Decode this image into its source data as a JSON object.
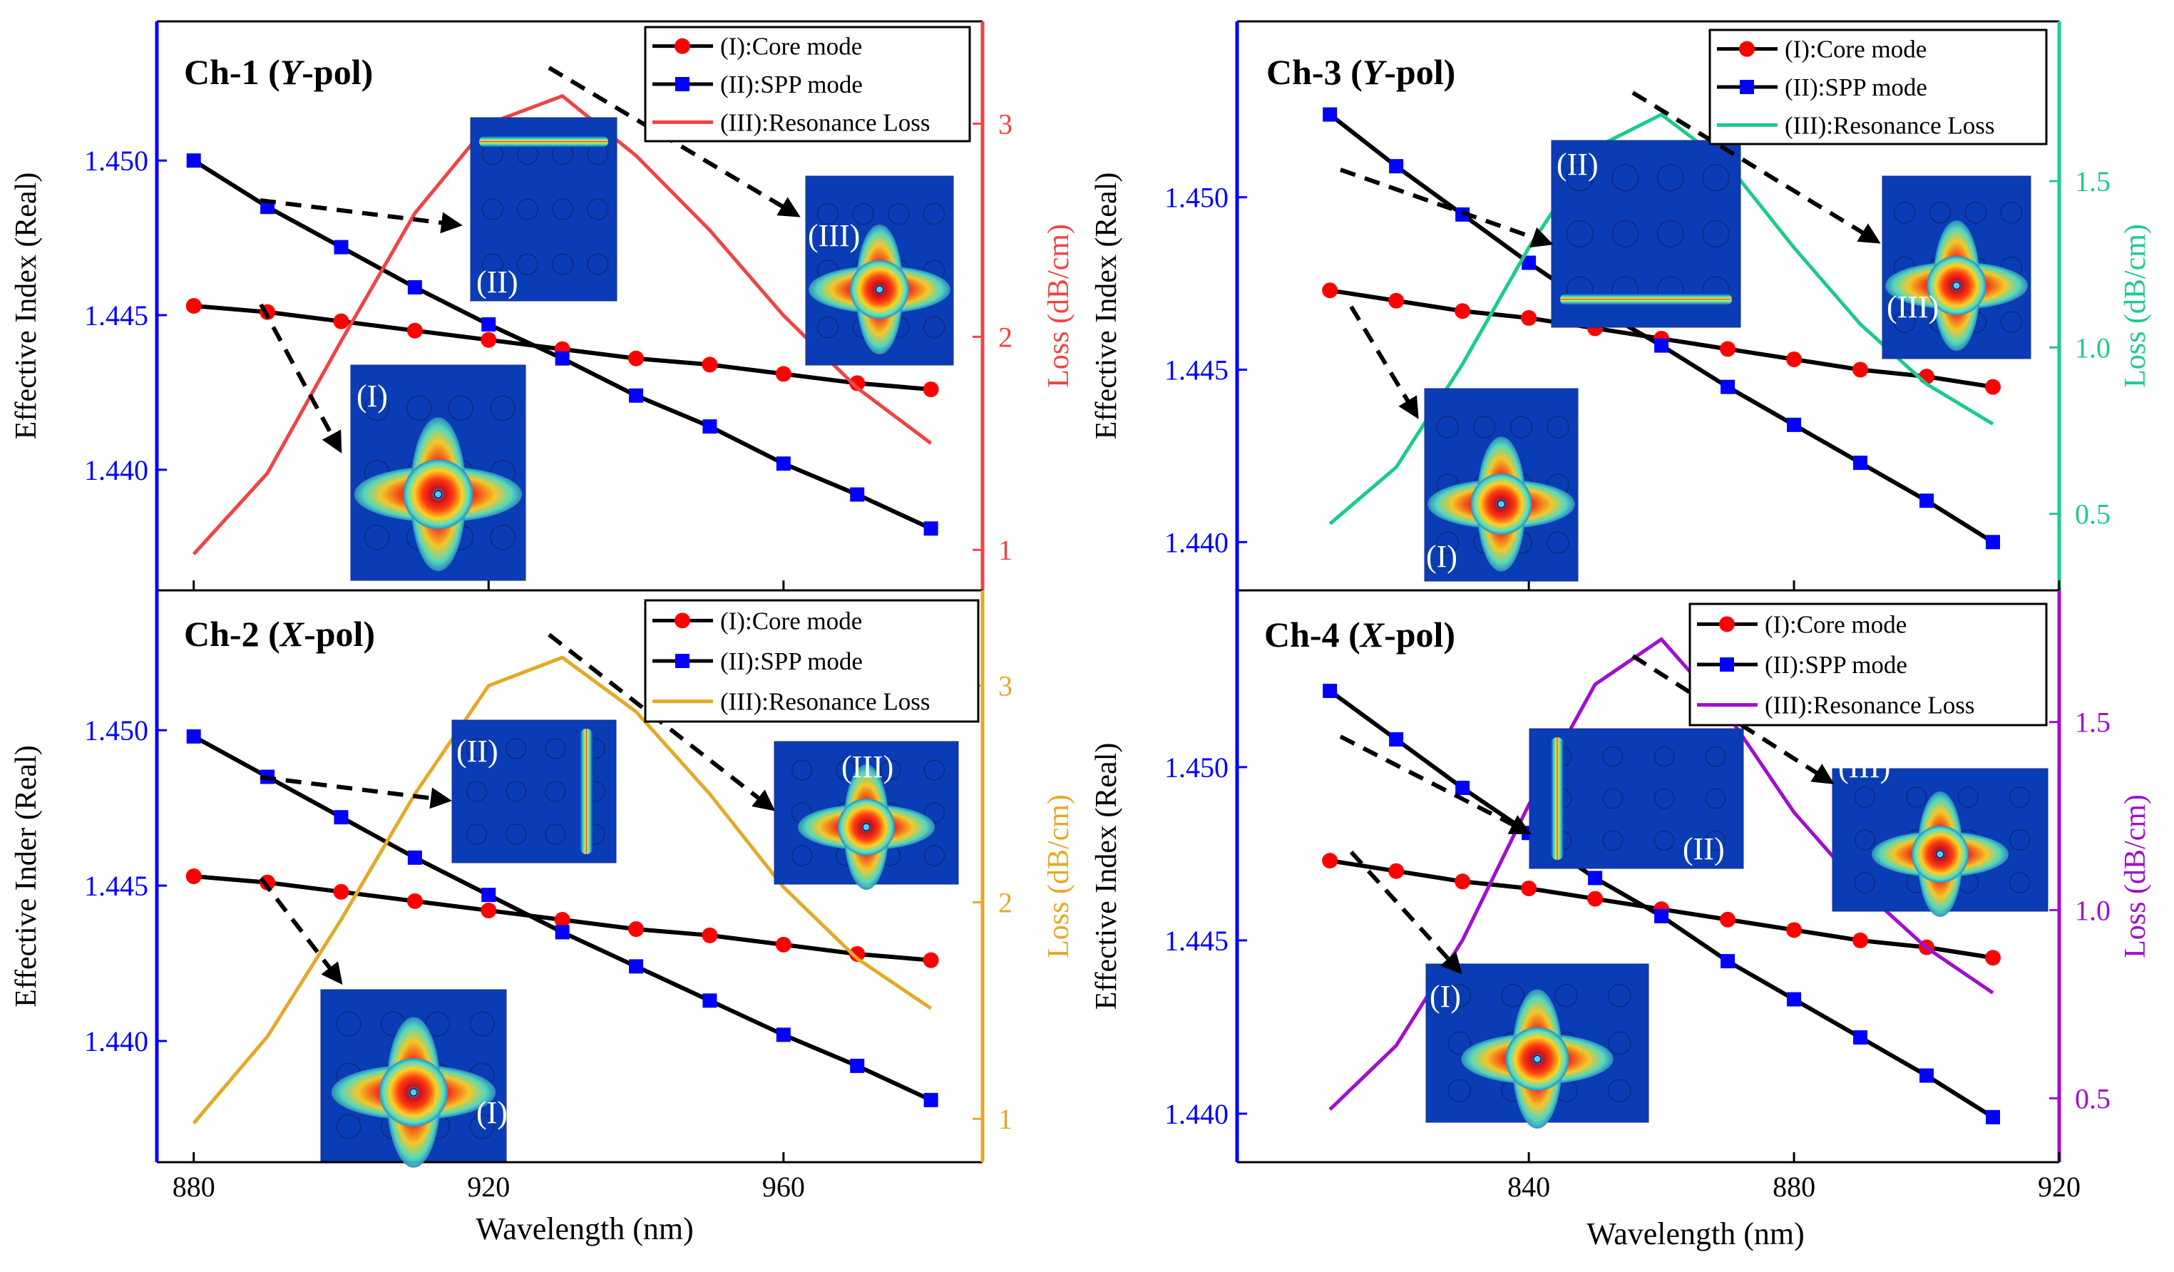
{
  "figure": {
    "shared_xlabel_left": "Wavelength (nm)",
    "shared_xlabel_right": "Wavelength (nm)"
  },
  "colors": {
    "axis_left": "#0000ff",
    "core": "#ff0000",
    "spp": "#0000ff",
    "black": "#000000",
    "loss_ch1": "#ef4444",
    "loss_ch2": "#e3a928",
    "loss_ch3": "#1ccb8a",
    "loss_ch4": "#a00ecf"
  },
  "chart_data": [
    {
      "id": "ch1",
      "type": "line",
      "title": "Ch-1 (Y-pol)",
      "title_prefix": "Ch-1 (",
      "title_italic": "Y",
      "title_suffix": "-pol)",
      "ylabel": "Effective Index (Real)",
      "y2label": "Loss (dB/cm)",
      "xlabel": "",
      "xlim": [
        875,
        987
      ],
      "ylim": [
        1.4361,
        1.4545
      ],
      "y2lim": [
        0.81,
        3.48
      ],
      "xticks": [
        "880",
        "920",
        "960"
      ],
      "xtick_values": [
        880,
        920,
        960
      ],
      "yticks": [
        "1.440",
        "1.445",
        "1.450"
      ],
      "ytick_values": [
        1.44,
        1.445,
        1.45
      ],
      "y2ticks": [
        "1",
        "2",
        "3"
      ],
      "y2tick_values": [
        1,
        2,
        3
      ],
      "legend": [
        "(I):Core mode",
        "(II):SPP mode",
        "(III):Resonance Loss"
      ],
      "x": [
        880,
        890,
        900,
        910,
        920,
        930,
        940,
        950,
        960,
        970,
        980
      ],
      "series": [
        {
          "name": "(I):Core mode",
          "axis": "left",
          "values": [
            1.4453,
            1.4451,
            1.4448,
            1.4445,
            1.4442,
            1.4439,
            1.4436,
            1.4434,
            1.4431,
            1.4428,
            1.4426
          ]
        },
        {
          "name": "(II):SPP mode",
          "axis": "left",
          "values": [
            1.45,
            1.4485,
            1.4472,
            1.4459,
            1.4447,
            1.4436,
            1.4424,
            1.4414,
            1.4402,
            1.4392,
            1.4381
          ]
        },
        {
          "name": "(III):Resonance Loss",
          "axis": "right",
          "values": [
            0.98,
            1.36,
            1.98,
            2.58,
            3.0,
            3.13,
            2.85,
            2.5,
            2.1,
            1.76,
            1.5
          ]
        }
      ],
      "insets": [
        "(I)",
        "(II)",
        "(III)"
      ]
    },
    {
      "id": "ch2",
      "type": "line",
      "title": "Ch-2 (X-pol)",
      "title_prefix": "Ch-2 (",
      "title_italic": "X",
      "title_suffix": "-pol)",
      "ylabel": "Effective Inder (Real)",
      "y2label": "Loss (dB/cm)",
      "xlabel": "Wavelength (nm)",
      "xlim": [
        875,
        987
      ],
      "ylim": [
        1.4361,
        1.4545
      ],
      "y2lim": [
        0.8,
        3.44
      ],
      "xticks": [
        "880",
        "920",
        "960"
      ],
      "xtick_values": [
        880,
        920,
        960
      ],
      "yticks": [
        "1.440",
        "1.445",
        "1.450"
      ],
      "ytick_values": [
        1.44,
        1.445,
        1.45
      ],
      "y2ticks": [
        "1",
        "2",
        "3"
      ],
      "y2tick_values": [
        1,
        2,
        3
      ],
      "legend": [
        "(I):Core mode",
        "(II):SPP mode",
        "(III):Resonance Loss"
      ],
      "x": [
        880,
        890,
        900,
        910,
        920,
        930,
        940,
        950,
        960,
        970,
        980
      ],
      "series": [
        {
          "name": "(I):Core mode",
          "axis": "left",
          "values": [
            1.4453,
            1.4451,
            1.4448,
            1.4445,
            1.4442,
            1.4439,
            1.4436,
            1.4434,
            1.4431,
            1.4428,
            1.4426
          ]
        },
        {
          "name": "(II):SPP mode",
          "axis": "left",
          "values": [
            1.4498,
            1.4485,
            1.4472,
            1.4459,
            1.4447,
            1.4435,
            1.4424,
            1.4413,
            1.4402,
            1.4392,
            1.4381
          ]
        },
        {
          "name": "(III):Resonance Loss",
          "axis": "right",
          "values": [
            0.98,
            1.38,
            1.92,
            2.5,
            3.0,
            3.13,
            2.88,
            2.5,
            2.07,
            1.74,
            1.51
          ]
        }
      ],
      "insets": [
        "(I)",
        "(II)",
        "(III)"
      ]
    },
    {
      "id": "ch3",
      "type": "line",
      "title": "Ch-3 (Y-pol)",
      "title_prefix": "Ch-3 (",
      "title_italic": "Y",
      "title_suffix": "-pol)",
      "ylabel": "Effective Index (Real)",
      "y2label": "Loss (dB/cm)",
      "xlabel": "",
      "xlim": [
        796,
        920
      ],
      "ylim": [
        1.4386,
        1.4551
      ],
      "y2lim": [
        0.27,
        1.98
      ],
      "xticks": [
        "840",
        "880",
        "920"
      ],
      "xtick_values": [
        840,
        880,
        920
      ],
      "yticks": [
        "1.440",
        "1.445",
        "1.450"
      ],
      "ytick_values": [
        1.44,
        1.445,
        1.45
      ],
      "y2ticks": [
        "0.5",
        "1.0",
        "1.5"
      ],
      "y2tick_values": [
        0.5,
        1.0,
        1.5
      ],
      "legend": [
        "(I):Core mode",
        "(II):SPP mode",
        "(III):Resonance Loss"
      ],
      "x": [
        810,
        820,
        830,
        840,
        850,
        860,
        870,
        880,
        890,
        900,
        910
      ],
      "series": [
        {
          "name": "(I):Core mode",
          "axis": "left",
          "values": [
            1.4473,
            1.447,
            1.4467,
            1.4465,
            1.4462,
            1.4459,
            1.4456,
            1.4453,
            1.445,
            1.4448,
            1.4445
          ]
        },
        {
          "name": "(II):SPP mode",
          "axis": "left",
          "values": [
            1.4524,
            1.4509,
            1.4495,
            1.4481,
            1.4468,
            1.4457,
            1.4445,
            1.4434,
            1.4423,
            1.4412,
            1.44
          ]
        },
        {
          "name": "(III):Resonance Loss",
          "axis": "right",
          "values": [
            0.47,
            0.64,
            0.95,
            1.3,
            1.6,
            1.7,
            1.55,
            1.3,
            1.07,
            0.89,
            0.77
          ]
        }
      ],
      "insets": [
        "(I)",
        "(II)",
        "(III)"
      ]
    },
    {
      "id": "ch4",
      "type": "line",
      "title": "Ch-4 (X-pol)",
      "title_prefix": "Ch-4 (",
      "title_italic": "X",
      "title_suffix": "-pol)",
      "ylabel": "Effective Index (Real)",
      "y2label": "Loss (dB/cm)",
      "xlabel": "Wavelength (nm)",
      "xlim": [
        796,
        920
      ],
      "ylim": [
        1.4386,
        1.4551
      ],
      "y2lim": [
        0.33,
        1.85
      ],
      "xticks": [
        "840",
        "880",
        "920"
      ],
      "xtick_values": [
        840,
        880,
        920
      ],
      "yticks": [
        "1.440",
        "1.445",
        "1.450"
      ],
      "ytick_values": [
        1.44,
        1.445,
        1.45
      ],
      "y2ticks": [
        "0.5",
        "1.0",
        "1.5"
      ],
      "y2tick_values": [
        0.5,
        1.0,
        1.5
      ],
      "legend": [
        "(I):Core mode",
        "(II):SPP mode",
        "(III):Resonance Loss"
      ],
      "x": [
        810,
        820,
        830,
        840,
        850,
        860,
        870,
        880,
        890,
        900,
        910
      ],
      "series": [
        {
          "name": "(I):Core mode",
          "axis": "left",
          "values": [
            1.4473,
            1.447,
            1.4467,
            1.4465,
            1.4462,
            1.4459,
            1.4456,
            1.4453,
            1.445,
            1.4448,
            1.4445
          ]
        },
        {
          "name": "(II):SPP mode",
          "axis": "left",
          "values": [
            1.4522,
            1.4508,
            1.4494,
            1.4481,
            1.4468,
            1.4457,
            1.4444,
            1.4433,
            1.4422,
            1.4411,
            1.4399
          ]
        },
        {
          "name": "(III):Resonance Loss",
          "axis": "right",
          "values": [
            0.47,
            0.64,
            0.92,
            1.28,
            1.6,
            1.72,
            1.52,
            1.26,
            1.06,
            0.9,
            0.78
          ]
        }
      ],
      "insets": [
        "(I)",
        "(II)",
        "(III)"
      ]
    }
  ]
}
